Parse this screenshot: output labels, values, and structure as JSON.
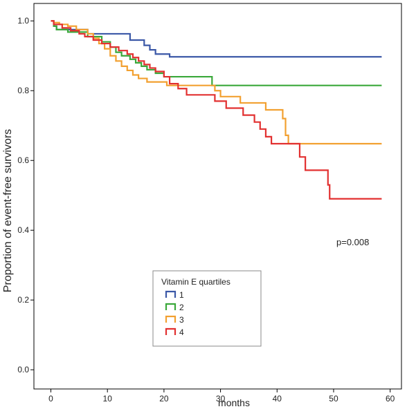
{
  "chart_data": {
    "type": "line",
    "xlabel": "months",
    "ylabel": "Proportion of event-free survivors",
    "xlim": [
      -3,
      62
    ],
    "ylim": [
      -0.055,
      1.05
    ],
    "xticks": [
      0,
      10,
      20,
      30,
      40,
      50,
      60
    ],
    "xtick_labels": [
      "0",
      "10",
      "20",
      "30",
      "40",
      "50",
      "60"
    ],
    "yticks": [
      0.0,
      0.2,
      0.4,
      0.6,
      0.8,
      1.0
    ],
    "ytick_labels": [
      "0.0",
      "0.2",
      "0.4",
      "0.6",
      "0.8",
      "1.0"
    ],
    "grid": false,
    "legend_title": "Vitamin E quartiles",
    "legend_position": "bottom-center",
    "annotation": "p=0.008",
    "series": [
      {
        "name": "1",
        "color": "#3b58a7",
        "steps": [
          [
            0,
            1.0
          ],
          [
            0.5,
            0.985
          ],
          [
            1.0,
            0.975
          ],
          [
            6.5,
            0.963
          ],
          [
            14,
            0.945
          ],
          [
            16.5,
            0.93
          ],
          [
            17.5,
            0.917
          ],
          [
            18.5,
            0.905
          ],
          [
            21,
            0.897
          ],
          [
            58.5,
            0.897
          ]
        ]
      },
      {
        "name": "2",
        "color": "#3aa83a",
        "steps": [
          [
            0,
            1.0
          ],
          [
            0.5,
            0.985
          ],
          [
            1.0,
            0.975
          ],
          [
            3.0,
            0.968
          ],
          [
            6.5,
            0.955
          ],
          [
            9.0,
            0.94
          ],
          [
            10.5,
            0.925
          ],
          [
            11.5,
            0.91
          ],
          [
            12.5,
            0.9
          ],
          [
            14.0,
            0.89
          ],
          [
            15.0,
            0.88
          ],
          [
            16.0,
            0.87
          ],
          [
            17.0,
            0.86
          ],
          [
            18.5,
            0.85
          ],
          [
            20.0,
            0.84
          ],
          [
            28.5,
            0.815
          ],
          [
            58.5,
            0.815
          ]
        ]
      },
      {
        "name": "3",
        "color": "#f2a030",
        "steps": [
          [
            0,
            1.0
          ],
          [
            0.5,
            0.995
          ],
          [
            1.5,
            0.99
          ],
          [
            3.0,
            0.985
          ],
          [
            4.5,
            0.975
          ],
          [
            6.5,
            0.963
          ],
          [
            7.5,
            0.95
          ],
          [
            8.5,
            0.935
          ],
          [
            9.5,
            0.92
          ],
          [
            10.5,
            0.9
          ],
          [
            11.5,
            0.885
          ],
          [
            12.5,
            0.87
          ],
          [
            13.5,
            0.858
          ],
          [
            14.5,
            0.845
          ],
          [
            15.5,
            0.835
          ],
          [
            17.0,
            0.825
          ],
          [
            20.5,
            0.815
          ],
          [
            29.0,
            0.8
          ],
          [
            30.0,
            0.783
          ],
          [
            33.5,
            0.765
          ],
          [
            38.0,
            0.745
          ],
          [
            41.0,
            0.72
          ],
          [
            41.5,
            0.672
          ],
          [
            42.0,
            0.648
          ],
          [
            58.5,
            0.648
          ]
        ]
      },
      {
        "name": "4",
        "color": "#e23030",
        "steps": [
          [
            0,
            1.0
          ],
          [
            0.5,
            0.99
          ],
          [
            2.0,
            0.98
          ],
          [
            3.5,
            0.972
          ],
          [
            5.0,
            0.963
          ],
          [
            6.0,
            0.955
          ],
          [
            7.5,
            0.945
          ],
          [
            9.0,
            0.935
          ],
          [
            10.5,
            0.925
          ],
          [
            12.0,
            0.915
          ],
          [
            13.5,
            0.905
          ],
          [
            14.5,
            0.895
          ],
          [
            15.5,
            0.885
          ],
          [
            16.5,
            0.875
          ],
          [
            17.5,
            0.865
          ],
          [
            18.5,
            0.855
          ],
          [
            20.0,
            0.84
          ],
          [
            21.0,
            0.82
          ],
          [
            22.5,
            0.806
          ],
          [
            24.0,
            0.788
          ],
          [
            29.0,
            0.77
          ],
          [
            31.0,
            0.75
          ],
          [
            34.0,
            0.73
          ],
          [
            36.0,
            0.71
          ],
          [
            37.0,
            0.69
          ],
          [
            38.0,
            0.668
          ],
          [
            39.0,
            0.648
          ],
          [
            44.0,
            0.61
          ],
          [
            45.0,
            0.572
          ],
          [
            49.0,
            0.53
          ],
          [
            49.3,
            0.49
          ],
          [
            58.5,
            0.49
          ]
        ]
      }
    ]
  }
}
